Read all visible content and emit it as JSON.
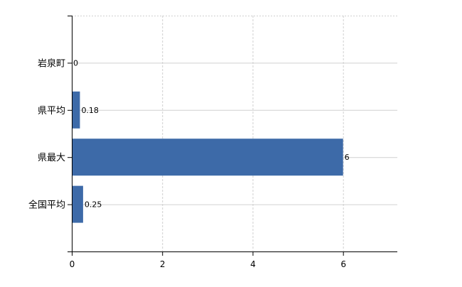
{
  "chart_data": {
    "type": "bar",
    "orientation": "horizontal",
    "categories": [
      "岩泉町",
      "県平均",
      "県最大",
      "全国平均"
    ],
    "values": [
      0,
      0.18,
      6,
      0.25
    ],
    "data_labels": [
      "0",
      "0.18",
      "6",
      "0.25"
    ],
    "title": "",
    "xlabel": "",
    "ylabel": "",
    "xlim": [
      0,
      7.2
    ],
    "xticks": [
      0,
      2,
      4,
      6
    ],
    "xtick_labels": [
      "0",
      "2",
      "4",
      "6"
    ],
    "grid": true,
    "legend": "none",
    "colors": {
      "bar": "#3d6aa8",
      "grid": "#d0d0d0",
      "axis": "#000000",
      "tick_label": "#000000"
    }
  }
}
